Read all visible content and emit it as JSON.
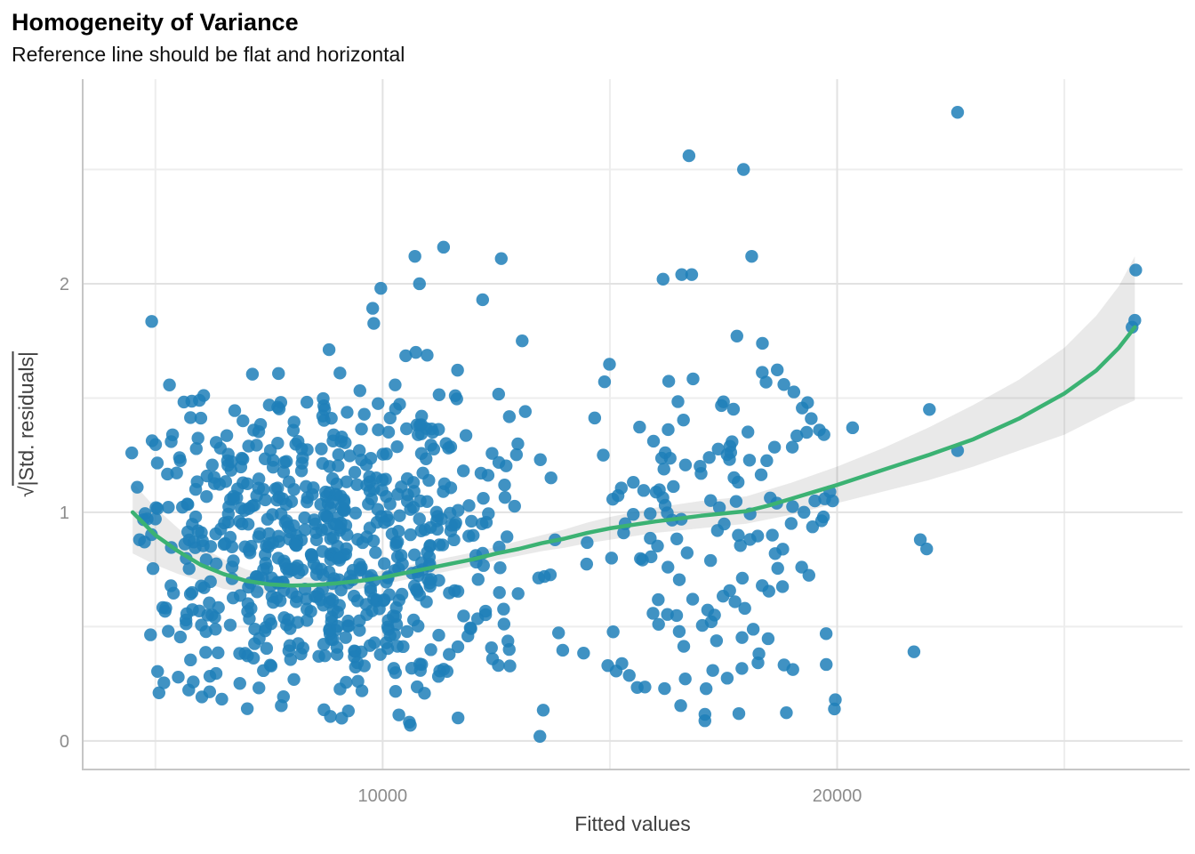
{
  "title": "Homogeneity of Variance",
  "subtitle": "Reference line should be flat and horizontal",
  "x_axis": {
    "label": "Fitted values",
    "tick_values": [
      10000,
      20000
    ],
    "tick_labels": [
      "10000",
      "20000"
    ],
    "minor_tick_values": [
      5000,
      15000,
      25000
    ]
  },
  "y_axis": {
    "label_prefix": "√",
    "label_radicand": "|Std. residuals|",
    "tick_values": [
      0,
      1,
      2
    ],
    "tick_labels": [
      "0",
      "1",
      "2"
    ],
    "minor_tick_values": [
      0.5,
      1.5,
      2.5
    ]
  },
  "colors": {
    "point": "#1e7fb8",
    "point_opacity": 0.85,
    "smooth_line": "#3bb273",
    "confidence_band": "#000000",
    "confidence_band_opacity": 0.085,
    "grid_major": "#e2e2e2",
    "grid_minor": "#ededed",
    "axis_line": "#c6c6c6",
    "tick_label": "#8c8c8c",
    "axis_title": "#404040",
    "title": "#000000"
  },
  "chart_data": {
    "type": "scatter",
    "title": "Homogeneity of Variance",
    "subtitle": "Reference line should be flat and horizontal",
    "xlabel": "Fitted values",
    "ylabel": "sqrt(|Std. residuals|)",
    "xlim": [
      3400,
      27600
    ],
    "ylim": [
      -0.125,
      2.895
    ],
    "grid": true,
    "legend": "none",
    "smooth_line": {
      "name": "loess reference line",
      "points": [
        [
          4500,
          1.0
        ],
        [
          5000,
          0.9
        ],
        [
          5500,
          0.83
        ],
        [
          6000,
          0.77
        ],
        [
          6500,
          0.73
        ],
        [
          7000,
          0.7
        ],
        [
          7500,
          0.685
        ],
        [
          8000,
          0.68
        ],
        [
          8500,
          0.682
        ],
        [
          9000,
          0.69
        ],
        [
          9500,
          0.7
        ],
        [
          10000,
          0.715
        ],
        [
          10500,
          0.735
        ],
        [
          11000,
          0.755
        ],
        [
          11500,
          0.775
        ],
        [
          12000,
          0.795
        ],
        [
          12500,
          0.82
        ],
        [
          13000,
          0.84
        ],
        [
          13500,
          0.865
        ],
        [
          14000,
          0.885
        ],
        [
          14500,
          0.91
        ],
        [
          15000,
          0.93
        ],
        [
          16000,
          0.96
        ],
        [
          17000,
          0.985
        ],
        [
          18000,
          1.005
        ],
        [
          18500,
          1.03
        ],
        [
          19000,
          1.06
        ],
        [
          19500,
          1.09
        ],
        [
          20000,
          1.12
        ],
        [
          21000,
          1.185
        ],
        [
          22000,
          1.25
        ],
        [
          23000,
          1.32
        ],
        [
          24000,
          1.41
        ],
        [
          25000,
          1.52
        ],
        [
          25700,
          1.62
        ],
        [
          26200,
          1.72
        ],
        [
          26550,
          1.81
        ]
      ]
    },
    "confidence_band": {
      "name": "smooth 95% confidence band",
      "points_x_lo_hi": [
        [
          4500,
          0.82,
          1.13
        ],
        [
          5000,
          0.77,
          1.02
        ],
        [
          5500,
          0.73,
          0.93
        ],
        [
          6000,
          0.7,
          0.85
        ],
        [
          6500,
          0.665,
          0.795
        ],
        [
          7000,
          0.65,
          0.75
        ],
        [
          7500,
          0.645,
          0.725
        ],
        [
          8000,
          0.645,
          0.715
        ],
        [
          8500,
          0.65,
          0.715
        ],
        [
          9000,
          0.655,
          0.72
        ],
        [
          9500,
          0.665,
          0.73
        ],
        [
          10000,
          0.685,
          0.745
        ],
        [
          10500,
          0.705,
          0.765
        ],
        [
          11000,
          0.725,
          0.785
        ],
        [
          11500,
          0.745,
          0.805
        ],
        [
          12000,
          0.765,
          0.825
        ],
        [
          12500,
          0.79,
          0.85
        ],
        [
          13000,
          0.81,
          0.875
        ],
        [
          13500,
          0.83,
          0.9
        ],
        [
          14000,
          0.845,
          0.925
        ],
        [
          14500,
          0.865,
          0.955
        ],
        [
          15000,
          0.88,
          0.98
        ],
        [
          16000,
          0.91,
          1.02
        ],
        [
          17000,
          0.93,
          1.05
        ],
        [
          18000,
          0.95,
          1.07
        ],
        [
          19000,
          0.99,
          1.13
        ],
        [
          20000,
          1.04,
          1.2
        ],
        [
          21000,
          1.09,
          1.28
        ],
        [
          22000,
          1.14,
          1.37
        ],
        [
          23000,
          1.2,
          1.47
        ],
        [
          24000,
          1.27,
          1.58
        ],
        [
          25000,
          1.34,
          1.72
        ],
        [
          25700,
          1.41,
          1.86
        ],
        [
          26200,
          1.46,
          1.99
        ],
        [
          26550,
          1.49,
          2.12
        ]
      ]
    },
    "highlight_points": [
      [
        22650,
        2.75
      ],
      [
        16740,
        2.56
      ],
      [
        17940,
        2.5
      ],
      [
        18120,
        2.12
      ],
      [
        16170,
        2.02
      ],
      [
        16580,
        2.04
      ],
      [
        16800,
        2.04
      ],
      [
        11340,
        2.16
      ],
      [
        10710,
        2.12
      ],
      [
        12610,
        2.11
      ],
      [
        10810,
        2.0
      ],
      [
        9960,
        1.98
      ],
      [
        12200,
        1.93
      ],
      [
        13070,
        1.75
      ],
      [
        26570,
        2.06
      ],
      [
        26550,
        1.84
      ],
      [
        26490,
        1.81
      ],
      [
        19350,
        1.48
      ],
      [
        19430,
        1.41
      ],
      [
        19330,
        1.35
      ],
      [
        19610,
        1.36
      ],
      [
        19710,
        1.34
      ],
      [
        20340,
        1.37
      ],
      [
        22030,
        1.45
      ],
      [
        22650,
        1.27
      ],
      [
        19840,
        1.09
      ],
      [
        19900,
        1.05
      ],
      [
        19510,
        1.05
      ],
      [
        21830,
        0.88
      ],
      [
        21970,
        0.84
      ],
      [
        19220,
        0.76
      ],
      [
        21690,
        0.39
      ],
      [
        19960,
        0.18
      ],
      [
        19940,
        0.14
      ],
      [
        4480,
        1.26
      ],
      [
        4600,
        1.11
      ],
      [
        4650,
        0.88
      ],
      [
        4760,
        0.87
      ],
      [
        13460,
        0.02
      ]
    ],
    "point_cloud": {
      "note": "dense unlabeled residual cloud, ~890 points total, reproduced from seeded distributions",
      "seed": 20,
      "clusters": [
        {
          "count": 700,
          "x_mean": 8700,
          "x_sd": 2250,
          "x_min": 4620,
          "x_max": 14550,
          "y_sigma": 1.05,
          "y_max": 1.95
        },
        {
          "count": 145,
          "x_mean": 17200,
          "x_sd": 1500,
          "x_min": 14650,
          "x_max": 19780,
          "y_sigma": 1.3,
          "y_max": 1.9
        }
      ]
    }
  }
}
